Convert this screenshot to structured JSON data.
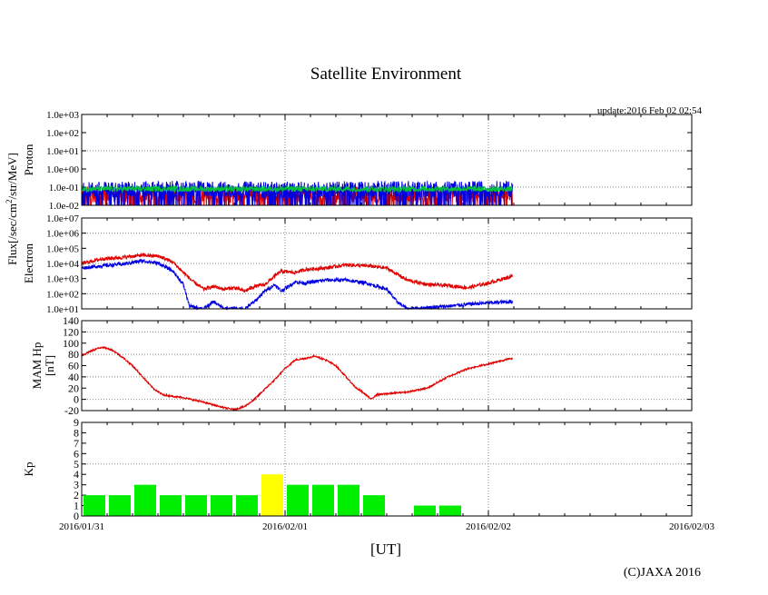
{
  "title": "Satellite Environment",
  "update_label": "update:2016 Feb 02 02:54",
  "copyright": "(C)JAXA 2016",
  "xlabel": "[UT]",
  "flux_label_main": "Flux[/sec/cm",
  "flux_label_sup": "2",
  "flux_label_rest": "/str/MeV]",
  "x_ticks": [
    "2016/01/31",
    "2016/02/01",
    "2016/02/02",
    "2016/02/03"
  ],
  "colors": {
    "red": "#e00000",
    "blue": "#0000e0",
    "green": "#00c040",
    "kp_green": "#00ee00",
    "kp_yellow": "#ffff00"
  },
  "chart_data": [
    {
      "type": "line",
      "panel": "proton",
      "ylabel": "Proton",
      "yscale": "log",
      "ylim": [
        0.01,
        1000
      ],
      "yticks": [
        "1.0e-02",
        "1.0e-01",
        "1.0e+00",
        "1.0e+01",
        "1.0e+02",
        "1.0e+03"
      ],
      "grid": true,
      "x_unit": "days since 2016/01/31 00:00 UT",
      "xlim": [
        0,
        3
      ],
      "series": [
        {
          "color": "red",
          "points": [
            [
              0,
              0.04
            ],
            [
              0.5,
              0.04
            ],
            [
              1.0,
              0.04
            ],
            [
              1.5,
              0.04
            ],
            [
              2.12,
              0.04
            ]
          ]
        },
        {
          "color": "blue",
          "points": [
            [
              0,
              0.07
            ],
            [
              0.5,
              0.08
            ],
            [
              1.0,
              0.07
            ],
            [
              1.5,
              0.08
            ],
            [
              2.12,
              0.08
            ]
          ]
        },
        {
          "color": "green",
          "points": [
            [
              0,
              0.08
            ],
            [
              0.5,
              0.08
            ],
            [
              1.0,
              0.08
            ],
            [
              1.5,
              0.08
            ],
            [
              2.12,
              0.08
            ]
          ]
        }
      ]
    },
    {
      "type": "line",
      "panel": "electron",
      "ylabel": "Electron",
      "yscale": "log",
      "ylim": [
        10,
        10000000
      ],
      "yticks": [
        "1.0e+01",
        "1.0e+02",
        "1.0e+03",
        "1.0e+04",
        "1.0e+05",
        "1.0e+06",
        "1.0e+07"
      ],
      "grid": true,
      "x_unit": "days since 2016/01/31 00:00 UT",
      "xlim": [
        0,
        3
      ],
      "series": [
        {
          "color": "red",
          "points": [
            [
              0,
              10000
            ],
            [
              0.1,
              20000
            ],
            [
              0.2,
              25000
            ],
            [
              0.3,
              35000
            ],
            [
              0.38,
              30000
            ],
            [
              0.45,
              12000
            ],
            [
              0.5,
              2500
            ],
            [
              0.55,
              600
            ],
            [
              0.6,
              200
            ],
            [
              0.65,
              300
            ],
            [
              0.7,
              200
            ],
            [
              0.75,
              250
            ],
            [
              0.8,
              150
            ],
            [
              0.85,
              300
            ],
            [
              0.9,
              400
            ],
            [
              0.95,
              1500
            ],
            [
              0.98,
              3000
            ],
            [
              1.05,
              2500
            ],
            [
              1.1,
              4000
            ],
            [
              1.2,
              5000
            ],
            [
              1.3,
              8000
            ],
            [
              1.4,
              7000
            ],
            [
              1.5,
              5000
            ],
            [
              1.55,
              2000
            ],
            [
              1.6,
              800
            ],
            [
              1.7,
              400
            ],
            [
              1.8,
              350
            ],
            [
              1.9,
              250
            ],
            [
              2.0,
              500
            ],
            [
              2.12,
              1500
            ]
          ]
        },
        {
          "color": "blue",
          "points": [
            [
              0,
              5000
            ],
            [
              0.1,
              7000
            ],
            [
              0.2,
              9000
            ],
            [
              0.3,
              15000
            ],
            [
              0.38,
              10000
            ],
            [
              0.45,
              3000
            ],
            [
              0.5,
              400
            ],
            [
              0.53,
              15
            ],
            [
              0.6,
              10
            ],
            [
              0.65,
              30
            ],
            [
              0.7,
              10
            ],
            [
              0.8,
              10
            ],
            [
              0.85,
              30
            ],
            [
              0.9,
              150
            ],
            [
              0.95,
              400
            ],
            [
              0.98,
              150
            ],
            [
              1.05,
              600
            ],
            [
              1.1,
              500
            ],
            [
              1.2,
              800
            ],
            [
              1.3,
              800
            ],
            [
              1.4,
              500
            ],
            [
              1.5,
              200
            ],
            [
              1.55,
              30
            ],
            [
              1.6,
              10
            ],
            [
              1.7,
              12
            ],
            [
              1.8,
              15
            ],
            [
              1.9,
              20
            ],
            [
              2.0,
              25
            ],
            [
              2.12,
              30
            ]
          ]
        }
      ]
    },
    {
      "type": "line",
      "panel": "magnetic",
      "ylabel": "MAM Hp",
      "ylabel2": "[nT]",
      "ylim": [
        -20,
        140
      ],
      "yticks": [
        "-20",
        "0",
        "20",
        "40",
        "60",
        "80",
        "100",
        "120",
        "140"
      ],
      "grid": true,
      "x_unit": "days since 2016/01/31 00:00 UT",
      "xlim": [
        0,
        3
      ],
      "series": [
        {
          "color": "red",
          "points": [
            [
              0,
              78
            ],
            [
              0.05,
              87
            ],
            [
              0.1,
              93
            ],
            [
              0.15,
              88
            ],
            [
              0.2,
              75
            ],
            [
              0.25,
              60
            ],
            [
              0.3,
              40
            ],
            [
              0.35,
              20
            ],
            [
              0.4,
              8
            ],
            [
              0.5,
              3
            ],
            [
              0.6,
              -5
            ],
            [
              0.7,
              -15
            ],
            [
              0.75,
              -18
            ],
            [
              0.8,
              -13
            ],
            [
              0.85,
              0
            ],
            [
              0.9,
              18
            ],
            [
              0.95,
              35
            ],
            [
              1.0,
              55
            ],
            [
              1.05,
              70
            ],
            [
              1.1,
              73
            ],
            [
              1.15,
              77
            ],
            [
              1.2,
              70
            ],
            [
              1.25,
              60
            ],
            [
              1.3,
              40
            ],
            [
              1.35,
              20
            ],
            [
              1.4,
              8
            ],
            [
              1.42,
              0
            ],
            [
              1.45,
              8
            ],
            [
              1.5,
              10
            ],
            [
              1.6,
              13
            ],
            [
              1.7,
              20
            ],
            [
              1.8,
              40
            ],
            [
              1.9,
              55
            ],
            [
              2.0,
              63
            ],
            [
              2.1,
              72
            ],
            [
              2.12,
              73
            ]
          ]
        }
      ]
    },
    {
      "type": "bar",
      "panel": "kp",
      "ylabel": "Kp",
      "ylim": [
        0,
        9
      ],
      "yticks": [
        "0",
        "1",
        "2",
        "3",
        "4",
        "5",
        "6",
        "7",
        "8",
        "9"
      ],
      "grid": true,
      "x_unit": "days since 2016/01/31 00:00 UT",
      "xlim": [
        0,
        3
      ],
      "bar_width": 0.125,
      "x": [
        0,
        0.125,
        0.25,
        0.375,
        0.5,
        0.625,
        0.75,
        0.875,
        1.0,
        1.125,
        1.25,
        1.375,
        1.625,
        1.75
      ],
      "values": [
        2,
        2,
        3,
        2,
        2,
        2,
        2,
        4,
        3,
        3,
        3,
        2,
        1,
        1
      ],
      "colors": [
        "kp_green",
        "kp_green",
        "kp_green",
        "kp_green",
        "kp_green",
        "kp_green",
        "kp_green",
        "kp_yellow",
        "kp_green",
        "kp_green",
        "kp_green",
        "kp_green",
        "kp_green",
        "kp_green"
      ]
    }
  ]
}
